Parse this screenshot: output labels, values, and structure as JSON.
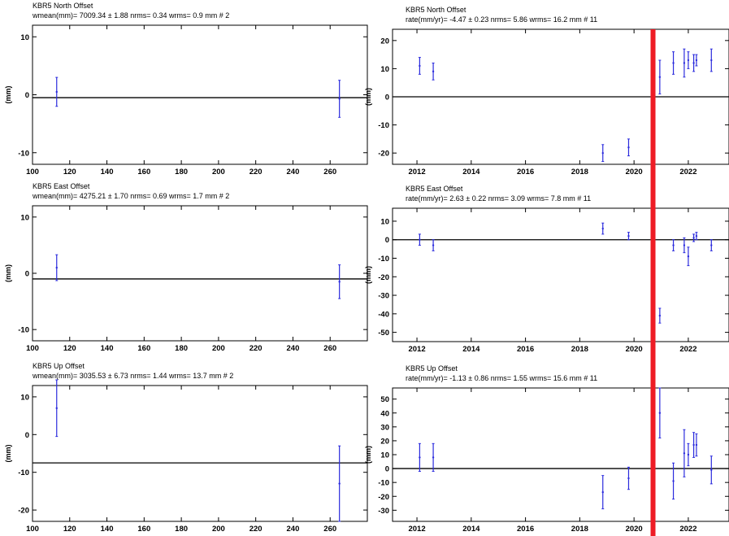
{
  "marker_color": "#ee1c25",
  "error_bar_color": "#2b2bdd",
  "chart_data": [
    {
      "type": "scatter",
      "title": "KBR5  North Offset",
      "stats": "wmean(mm)= 7009.34 ± 1.88  nrms=  0.34  wrms=    0.9 mm # 2",
      "ylabel": "(mm)",
      "xlim": [
        100,
        280
      ],
      "ylim": [
        -12,
        12
      ],
      "xticks": [
        100,
        120,
        140,
        160,
        180,
        200,
        220,
        240,
        260
      ],
      "yticks": [
        10,
        0,
        -10
      ],
      "zero_line": true,
      "ref_line": -0.5,
      "points": [
        {
          "x": 113,
          "y": 0.5,
          "err": 2.5
        },
        {
          "x": 265,
          "y": -0.7,
          "err": 3.2
        }
      ]
    },
    {
      "type": "scatter",
      "title": "KBR5  North Offset",
      "stats": "rate(mm/yr)=  -4.47 ± 0.23  nrms=  5.86  wrms=   16.2 mm # 11",
      "ylabel": "(mm)",
      "xlim": [
        2011.1,
        2023.5
      ],
      "ylim": [
        -24,
        24
      ],
      "xticks": [
        2012,
        2014,
        2016,
        2018,
        2020,
        2022
      ],
      "yticks": [
        20,
        10,
        0,
        -10,
        -20
      ],
      "zero_line": true,
      "ref_line": 0,
      "marker_x": 2020.7,
      "points": [
        {
          "x": 2012.1,
          "y": 11,
          "err": 3
        },
        {
          "x": 2012.6,
          "y": 9,
          "err": 3
        },
        {
          "x": 2018.85,
          "y": -20,
          "err": 3
        },
        {
          "x": 2019.8,
          "y": -18,
          "err": 3
        },
        {
          "x": 2020.95,
          "y": 7,
          "err": 6
        },
        {
          "x": 2021.45,
          "y": 12,
          "err": 4
        },
        {
          "x": 2021.85,
          "y": 12,
          "err": 5
        },
        {
          "x": 2022.0,
          "y": 13,
          "err": 3
        },
        {
          "x": 2022.2,
          "y": 12,
          "err": 3
        },
        {
          "x": 2022.3,
          "y": 13,
          "err": 2
        },
        {
          "x": 2022.85,
          "y": 13,
          "err": 4
        }
      ]
    },
    {
      "type": "scatter",
      "title": "KBR5  East Offset",
      "stats": "wmean(mm)= 4275.21 ± 1.70  nrms=  0.69  wrms=    1.7 mm # 2",
      "ylabel": "(mm)",
      "xlim": [
        100,
        280
      ],
      "ylim": [
        -12,
        12
      ],
      "xticks": [
        100,
        120,
        140,
        160,
        180,
        200,
        220,
        240,
        260
      ],
      "yticks": [
        10,
        0,
        -10
      ],
      "zero_line": true,
      "ref_line": -1,
      "points": [
        {
          "x": 113,
          "y": 1,
          "err": 2.3
        },
        {
          "x": 265,
          "y": -1.5,
          "err": 3
        }
      ]
    },
    {
      "type": "scatter",
      "title": "KBR5  East Offset",
      "stats": "rate(mm/yr)=   2.63 ± 0.22  nrms=  3.09  wrms=    7.8 mm # 11",
      "ylabel": "(mm)",
      "xlim": [
        2011.1,
        2023.5
      ],
      "ylim": [
        -55,
        17
      ],
      "xticks": [
        2012,
        2014,
        2016,
        2018,
        2020,
        2022
      ],
      "yticks": [
        10,
        0,
        -10,
        -20,
        -30,
        -40,
        -50
      ],
      "zero_line": true,
      "ref_line": 0,
      "marker_x": 2020.7,
      "points": [
        {
          "x": 2012.1,
          "y": 0,
          "err": 3
        },
        {
          "x": 2012.6,
          "y": -3,
          "err": 3
        },
        {
          "x": 2018.85,
          "y": 6,
          "err": 3
        },
        {
          "x": 2019.8,
          "y": 2,
          "err": 2
        },
        {
          "x": 2020.95,
          "y": -41,
          "err": 4
        },
        {
          "x": 2021.45,
          "y": -3,
          "err": 3
        },
        {
          "x": 2021.85,
          "y": -3,
          "err": 4
        },
        {
          "x": 2022.0,
          "y": -9,
          "err": 5
        },
        {
          "x": 2022.2,
          "y": 1,
          "err": 2
        },
        {
          "x": 2022.3,
          "y": 2,
          "err": 2
        },
        {
          "x": 2022.85,
          "y": -3,
          "err": 3
        }
      ]
    },
    {
      "type": "scatter",
      "title": "KBR5  Up Offset",
      "stats": "wmean(mm)= 3035.53 ± 6.73  nrms=  1.44  wrms=   13.7 mm # 2",
      "ylabel": "(mm)",
      "xlim": [
        100,
        280
      ],
      "ylim": [
        -23,
        13
      ],
      "xticks": [
        100,
        120,
        140,
        160,
        180,
        200,
        220,
        240,
        260
      ],
      "yticks": [
        10,
        0,
        -10,
        -20
      ],
      "zero_line": false,
      "ref_line": -7.5,
      "points": [
        {
          "x": 113,
          "y": 7,
          "err": 7.5
        },
        {
          "x": 265,
          "y": -13,
          "err": 10
        }
      ]
    },
    {
      "type": "scatter",
      "title": "KBR5  Up Offset",
      "stats": "rate(mm/yr)=  -1.13 ± 0.86  nrms=  1.55  wrms=   15.6 mm # 11",
      "ylabel": "(mm)",
      "xlim": [
        2011.1,
        2023.5
      ],
      "ylim": [
        -38,
        58
      ],
      "xticks": [
        2012,
        2014,
        2016,
        2018,
        2020,
        2022
      ],
      "yticks": [
        50,
        40,
        30,
        20,
        10,
        0,
        -10,
        -20,
        -30
      ],
      "zero_line": true,
      "ref_line": 0,
      "marker_x": 2020.7,
      "points": [
        {
          "x": 2012.1,
          "y": 8,
          "err": 10
        },
        {
          "x": 2012.6,
          "y": 8,
          "err": 10
        },
        {
          "x": 2018.85,
          "y": -17,
          "err": 12
        },
        {
          "x": 2019.8,
          "y": -7,
          "err": 8
        },
        {
          "x": 2020.95,
          "y": 40,
          "err": 18
        },
        {
          "x": 2021.45,
          "y": -9,
          "err": 13
        },
        {
          "x": 2021.85,
          "y": 11,
          "err": 17
        },
        {
          "x": 2022.0,
          "y": 10,
          "err": 8
        },
        {
          "x": 2022.2,
          "y": 17,
          "err": 9
        },
        {
          "x": 2022.3,
          "y": 17,
          "err": 8
        },
        {
          "x": 2022.85,
          "y": -1,
          "err": 10
        }
      ]
    }
  ]
}
